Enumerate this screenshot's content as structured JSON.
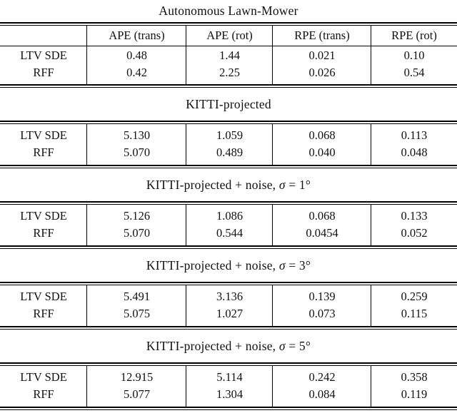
{
  "table": {
    "header": {
      "col0": "",
      "cols": [
        "APE (trans)",
        "APE (rot)",
        "RPE (trans)",
        "RPE (rot)"
      ]
    },
    "sections": [
      {
        "title_prefix": "Autonomous Lawn-Mower",
        "sigma": "",
        "title_suffix": "",
        "rows": [
          {
            "label": "LTV SDE",
            "values": [
              "0.48",
              "1.44",
              "0.021",
              "0.10"
            ]
          },
          {
            "label": "RFF",
            "values": [
              "0.42",
              "2.25",
              "0.026",
              "0.54"
            ]
          }
        ]
      },
      {
        "title_prefix": "KITTI-projected",
        "sigma": "",
        "title_suffix": "",
        "rows": [
          {
            "label": "LTV SDE",
            "values": [
              "5.130",
              "1.059",
              "0.068",
              "0.113"
            ]
          },
          {
            "label": "RFF",
            "values": [
              "5.070",
              "0.489",
              "0.040",
              "0.048"
            ]
          }
        ]
      },
      {
        "title_prefix": "KITTI-projected + noise, ",
        "sigma": "σ",
        "title_suffix": " = 1°",
        "rows": [
          {
            "label": "LTV SDE",
            "values": [
              "5.126",
              "1.086",
              "0.068",
              "0.133"
            ]
          },
          {
            "label": "RFF",
            "values": [
              "5.070",
              "0.544",
              "0.0454",
              "0.052"
            ]
          }
        ]
      },
      {
        "title_prefix": "KITTI-projected + noise, ",
        "sigma": "σ",
        "title_suffix": " = 3°",
        "rows": [
          {
            "label": "LTV SDE",
            "values": [
              "5.491",
              "3.136",
              "0.139",
              "0.259"
            ]
          },
          {
            "label": "RFF",
            "values": [
              "5.075",
              "1.027",
              "0.073",
              "0.115"
            ]
          }
        ]
      },
      {
        "title_prefix": "KITTI-projected + noise, ",
        "sigma": "σ",
        "title_suffix": " = 5°",
        "rows": [
          {
            "label": "LTV SDE",
            "values": [
              "12.915",
              "5.114",
              "0.242",
              "0.358"
            ]
          },
          {
            "label": "RFF",
            "values": [
              "5.077",
              "1.304",
              "0.084",
              "0.119"
            ]
          }
        ]
      }
    ]
  }
}
